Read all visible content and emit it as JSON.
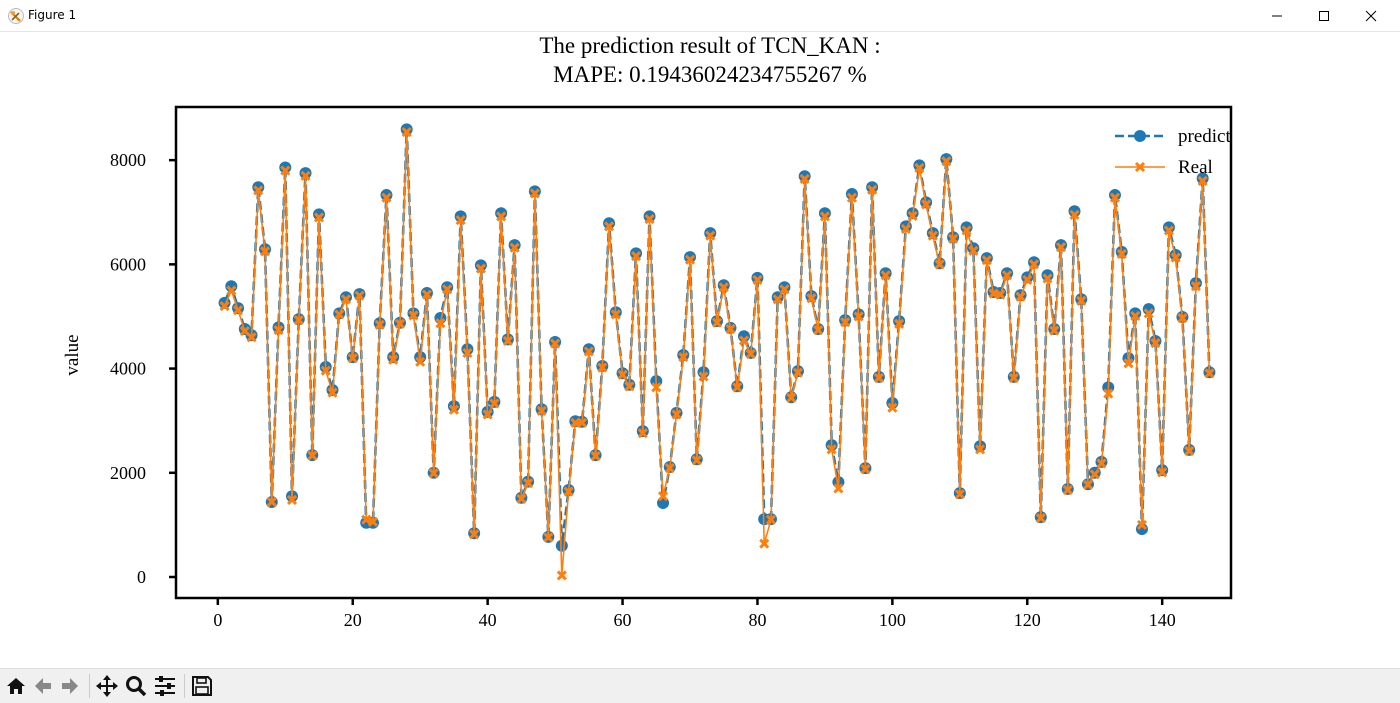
{
  "window": {
    "title": "Figure 1"
  },
  "toolbar": {
    "buttons": [
      "home",
      "back",
      "forward",
      "pan",
      "zoom",
      "configure-subplots",
      "save"
    ]
  },
  "chart_data": {
    "type": "line",
    "title_line1": "The prediction result of TCN_KAN :",
    "title_line2": "MAPE: 0.19436024234755267 %",
    "xlabel": "",
    "ylabel": "value",
    "xlim": [
      -6.2,
      150.2
    ],
    "ylim": [
      -403,
      9020
    ],
    "xticks": [
      0,
      20,
      40,
      60,
      80,
      100,
      120,
      140
    ],
    "yticks": [
      0,
      2000,
      4000,
      6000,
      8000
    ],
    "legend_position": "top-right",
    "x_start": 1,
    "series": [
      {
        "name": "predict",
        "color": "#1f77b4",
        "style": "dashed",
        "marker": "circle",
        "values": [
          5260,
          5580,
          5160,
          4760,
          4640,
          7480,
          6290,
          1440,
          4790,
          7860,
          1550,
          4950,
          7750,
          2340,
          6960,
          4030,
          3590,
          5060,
          5370,
          4220,
          5430,
          1040,
          1040,
          4870,
          7330,
          4220,
          4880,
          8590,
          5060,
          4220,
          5450,
          2000,
          4970,
          5560,
          3280,
          6920,
          4370,
          840,
          5980,
          3170,
          3360,
          6980,
          4560,
          6370,
          1520,
          1830,
          7400,
          3220,
          770,
          4510,
          600,
          1670,
          2990,
          2980,
          4370,
          2340,
          4050,
          6790,
          5080,
          3910,
          3690,
          6210,
          2800,
          6920,
          3760,
          1420,
          2110,
          3150,
          4260,
          6140,
          2260,
          3930,
          6600,
          4910,
          5600,
          4780,
          3660,
          4620,
          4300,
          5740,
          1110,
          1110,
          5370,
          5560,
          3450,
          3950,
          7690,
          5390,
          4760,
          6980,
          2530,
          1820,
          4930,
          7350,
          5040,
          2090,
          7480,
          3840,
          5830,
          3340,
          4910,
          6730,
          6980,
          7900,
          7190,
          6600,
          6020,
          8020,
          6520,
          1610,
          6710,
          6310,
          2510,
          6120,
          5470,
          5450,
          5830,
          3840,
          5410,
          5750,
          6040,
          1150,
          5790,
          4760,
          6370,
          1690,
          7020,
          5330,
          1780,
          2000,
          2210,
          3640,
          7330,
          6240,
          4200,
          5060,
          920,
          5140,
          4530,
          2050,
          6710,
          6180,
          4990,
          2440,
          5640,
          7650,
          3930
        ]
      },
      {
        "name": "Real",
        "color": "#ff7f0e",
        "style": "solid",
        "marker": "x",
        "values": [
          5200,
          5500,
          5120,
          4720,
          4600,
          7420,
          6250,
          1440,
          4740,
          7800,
          1480,
          4930,
          7700,
          2330,
          6900,
          3960,
          3540,
          5040,
          5330,
          4200,
          5400,
          1100,
          1060,
          4840,
          7280,
          4170,
          4860,
          8540,
          5020,
          4130,
          5420,
          1990,
          4870,
          5520,
          3210,
          6850,
          4300,
          820,
          5920,
          3120,
          3330,
          6920,
          4530,
          6320,
          1500,
          1800,
          7360,
          3190,
          760,
          4480,
          30,
          1640,
          2960,
          2960,
          4330,
          2320,
          4020,
          6730,
          5040,
          3880,
          3660,
          6160,
          2760,
          6870,
          3640,
          1550,
          2090,
          3120,
          4220,
          6090,
          2240,
          3850,
          6550,
          4880,
          5560,
          4760,
          3640,
          4540,
          4280,
          5700,
          640,
          1100,
          5330,
          5520,
          3440,
          3920,
          7640,
          5350,
          4740,
          6920,
          2450,
          1700,
          4890,
          7280,
          5000,
          2070,
          7430,
          3820,
          5790,
          3250,
          4860,
          6680,
          6930,
          7850,
          7150,
          6550,
          6000,
          7980,
          6490,
          1590,
          6650,
          6260,
          2450,
          6080,
          5440,
          5420,
          5790,
          3820,
          5380,
          5700,
          6000,
          1130,
          5730,
          4730,
          6330,
          1670,
          6950,
          5300,
          1770,
          1970,
          2180,
          3520,
          7280,
          6200,
          4100,
          5010,
          1000,
          5060,
          4490,
          2010,
          6650,
          6130,
          4970,
          2420,
          5580,
          7600,
          3910
        ]
      }
    ]
  }
}
